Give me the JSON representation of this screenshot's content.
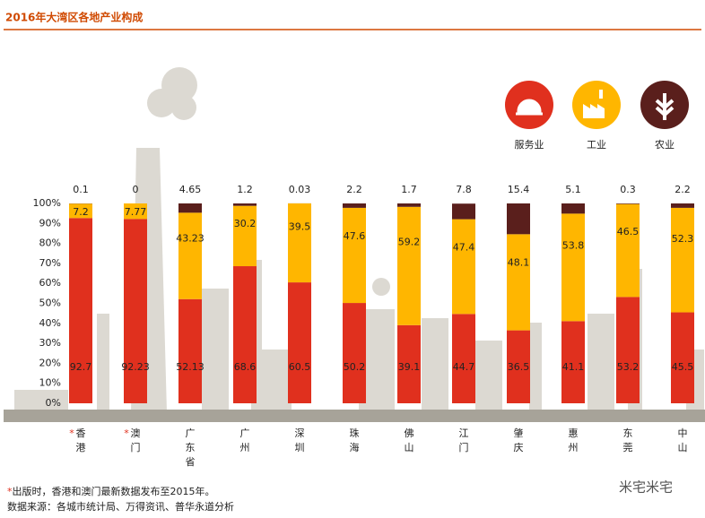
{
  "chart_data": {
    "type": "stacked-bar-100",
    "title": "2016年大湾区各地产业构成",
    "categories": [
      "*香港",
      "*澳门",
      "广东省",
      "广州",
      "深圳",
      "珠海",
      "佛山",
      "江门",
      "肇庆",
      "惠州",
      "东莞",
      "中山"
    ],
    "series": [
      {
        "name": "服务业",
        "color": "#e0301e",
        "values": [
          92.7,
          92.23,
          52.13,
          68.6,
          60.5,
          50.2,
          39.1,
          44.7,
          36.5,
          41.1,
          53.2,
          45.5
        ]
      },
      {
        "name": "工业",
        "color": "#ffb600",
        "values": [
          7.2,
          7.77,
          43.23,
          30.2,
          39.5,
          47.6,
          59.2,
          47.4,
          48.1,
          53.8,
          46.5,
          52.3
        ]
      },
      {
        "name": "农业",
        "color": "#5a1f1c",
        "values": [
          0.1,
          0,
          4.65,
          1.2,
          0.03,
          2.2,
          1.7,
          7.8,
          15.4,
          5.1,
          0.3,
          2.2
        ]
      }
    ],
    "ylim": [
      0,
      100
    ],
    "yticks": [
      {
        "value": 0,
        "label": "0%"
      },
      {
        "value": 10,
        "label": "10%"
      },
      {
        "value": 20,
        "label": "20%"
      },
      {
        "value": 30,
        "label": "30%"
      },
      {
        "value": 40,
        "label": "40%"
      },
      {
        "value": 50,
        "label": "50%"
      },
      {
        "value": 60,
        "label": "60%"
      },
      {
        "value": 70,
        "label": "70%"
      },
      {
        "value": 80,
        "label": "80%"
      },
      {
        "value": 90,
        "label": "90%"
      },
      {
        "value": 100,
        "label": "100%"
      }
    ],
    "notes": [
      "*出版时，香港和澳门最新数据发布至2015年。",
      "数据来源：各城市统计局、万得资讯、普华永道分析"
    ],
    "watermark": "米宅米宅"
  }
}
